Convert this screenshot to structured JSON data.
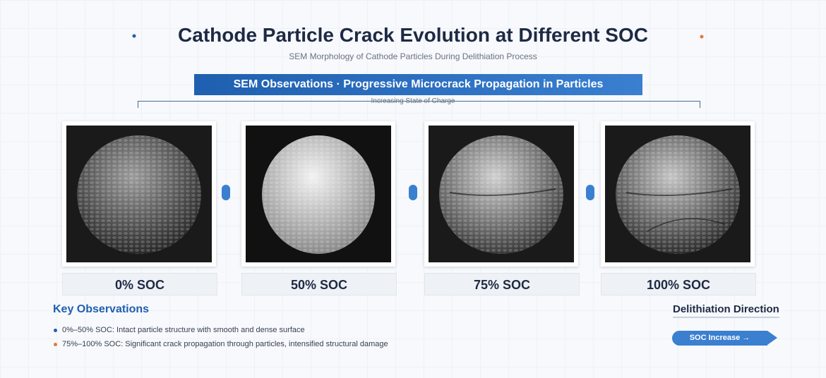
{
  "header": {
    "title": "Cathode Particle Crack Evolution at Different SOC",
    "subtitle": "SEM Morphology of Cathode Particles During Delithiation Process"
  },
  "banner": "SEM Observations · Progressive Microcrack Propagation in Particles",
  "axis_label": "Increasing State of Charge",
  "panels": [
    {
      "label": "0% SOC"
    },
    {
      "label": "50% SOC"
    },
    {
      "label": "75% SOC"
    },
    {
      "label": "100% SOC"
    }
  ],
  "observations": {
    "title": "Key Observations",
    "items": [
      "0%–50% SOC: Intact particle structure with smooth and dense surface",
      "75%–100% SOC: Significant crack propagation through particles, intensified structural damage"
    ]
  },
  "direction": {
    "title": "Delithiation Direction",
    "button": "SOC Increase →"
  }
}
